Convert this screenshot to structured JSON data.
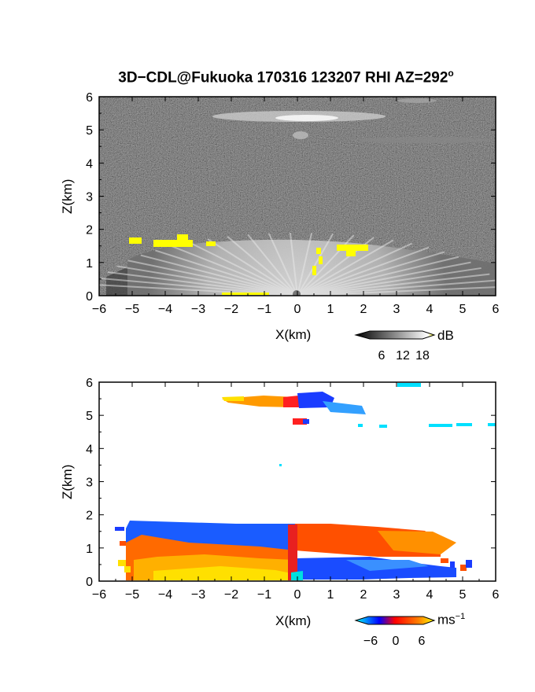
{
  "title": "3D−CDL@Fukuoka 170316 123207 RHI AZ=292",
  "title_sup": "o",
  "chart_data": [
    {
      "type": "heatmap",
      "name": "backscatter",
      "xlabel": "X(km)",
      "ylabel": "Z(km)",
      "xlim": [
        -6,
        6
      ],
      "ylim": [
        0,
        6
      ],
      "xticks": [
        -6,
        -5,
        -4,
        -3,
        -2,
        -1,
        0,
        1,
        2,
        3,
        4,
        5,
        6
      ],
      "yticks": [
        0,
        1,
        2,
        3,
        4,
        5,
        6
      ],
      "colorbar": {
        "unit": "dB",
        "tick_labels": [
          6,
          12,
          18
        ],
        "colors": [
          "#000000",
          "#ffffff",
          "#ffff00"
        ]
      }
    },
    {
      "type": "heatmap",
      "name": "doppler-velocity",
      "xlabel": "X(km)",
      "ylabel": "Z(km)",
      "xlim": [
        -6,
        6
      ],
      "ylim": [
        0,
        6
      ],
      "xticks": [
        -6,
        -5,
        -4,
        -3,
        -2,
        -1,
        0,
        1,
        2,
        3,
        4,
        5,
        6
      ],
      "yticks": [
        0,
        1,
        2,
        3,
        4,
        5,
        6
      ],
      "colorbar": {
        "unit": "ms",
        "unit_sup": "−1",
        "tick_labels": [
          -6,
          0,
          6
        ],
        "colors": [
          "#00ffff",
          "#0000ff",
          "#ff0000",
          "#ffff00"
        ]
      }
    }
  ]
}
